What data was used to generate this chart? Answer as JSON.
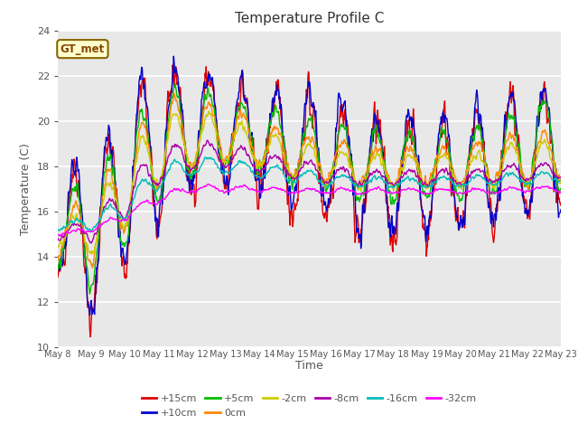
{
  "title": "Temperature Profile C",
  "xlabel": "Time",
  "ylabel": "Temperature (C)",
  "ylim": [
    10,
    24
  ],
  "background_color": "#ffffff",
  "plot_bg_color": "#e8e8e8",
  "series": [
    {
      "label": "+15cm",
      "color": "#dd0000"
    },
    {
      "label": "+10cm",
      "color": "#0000cc"
    },
    {
      "label": "+5cm",
      "color": "#00bb00"
    },
    {
      "label": "0cm",
      "color": "#ff8800"
    },
    {
      "label": "-2cm",
      "color": "#cccc00"
    },
    {
      "label": "-8cm",
      "color": "#aa00aa"
    },
    {
      "label": "-16cm",
      "color": "#00bbbb"
    },
    {
      "label": "-32cm",
      "color": "#ff00ff"
    }
  ],
  "gt_met_box_color": "#ffffcc",
  "gt_met_border_color": "#886600",
  "tick_labels": [
    "May 8",
    "May 9",
    "May 10",
    "May 11",
    "May 12",
    "May 13",
    "May 14",
    "May 15",
    "May 16",
    "May 17",
    "May 18",
    "May 19",
    "May 20",
    "May 21",
    "May 22",
    "May 23"
  ],
  "n_points": 960,
  "yticks": [
    10,
    12,
    14,
    16,
    18,
    20,
    22,
    24
  ]
}
